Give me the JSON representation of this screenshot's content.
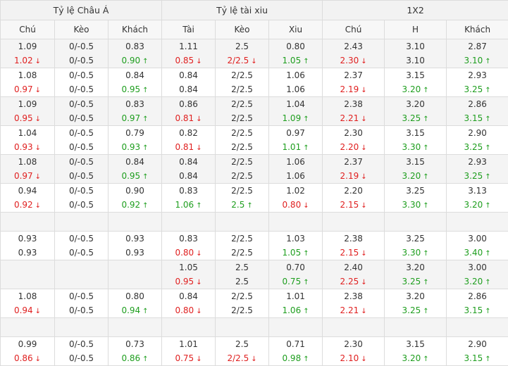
{
  "header": {
    "groups": [
      "Tỷ lệ Châu Á",
      "Tỷ lệ tài xiu",
      "1X2"
    ],
    "columns": [
      "Chú",
      "Kèo",
      "Khách",
      "Tài",
      "Kèo",
      "Xiu",
      "Chú",
      "H",
      "Khách"
    ]
  },
  "colors": {
    "up": "#1e9e1e",
    "down": "#e02020",
    "neutral": "#333333"
  },
  "rows": [
    {
      "type": "data",
      "cells": [
        [
          {
            "v": "1.09",
            "d": "n"
          },
          {
            "v": "1.02",
            "d": "down"
          }
        ],
        [
          {
            "v": "0/-0.5",
            "d": "n"
          },
          {
            "v": "0/-0.5",
            "d": "n"
          }
        ],
        [
          {
            "v": "0.83",
            "d": "n"
          },
          {
            "v": "0.90",
            "d": "up"
          }
        ],
        [
          {
            "v": "1.11",
            "d": "n"
          },
          {
            "v": "0.85",
            "d": "down"
          }
        ],
        [
          {
            "v": "2.5",
            "d": "n"
          },
          {
            "v": "2/2.5",
            "d": "down"
          }
        ],
        [
          {
            "v": "0.80",
            "d": "n"
          },
          {
            "v": "1.05",
            "d": "up"
          }
        ],
        [
          {
            "v": "2.43",
            "d": "n"
          },
          {
            "v": "2.30",
            "d": "down"
          }
        ],
        [
          {
            "v": "3.10",
            "d": "n"
          },
          {
            "v": "3.10",
            "d": "n"
          }
        ],
        [
          {
            "v": "2.87",
            "d": "n"
          },
          {
            "v": "3.10",
            "d": "up"
          }
        ]
      ]
    },
    {
      "type": "data",
      "cells": [
        [
          {
            "v": "1.08",
            "d": "n"
          },
          {
            "v": "0.97",
            "d": "down"
          }
        ],
        [
          {
            "v": "0/-0.5",
            "d": "n"
          },
          {
            "v": "0/-0.5",
            "d": "n"
          }
        ],
        [
          {
            "v": "0.84",
            "d": "n"
          },
          {
            "v": "0.95",
            "d": "up"
          }
        ],
        [
          {
            "v": "0.84",
            "d": "n"
          },
          {
            "v": "0.84",
            "d": "n"
          }
        ],
        [
          {
            "v": "2/2.5",
            "d": "n"
          },
          {
            "v": "2/2.5",
            "d": "n"
          }
        ],
        [
          {
            "v": "1.06",
            "d": "n"
          },
          {
            "v": "1.06",
            "d": "n"
          }
        ],
        [
          {
            "v": "2.37",
            "d": "n"
          },
          {
            "v": "2.19",
            "d": "down"
          }
        ],
        [
          {
            "v": "3.15",
            "d": "n"
          },
          {
            "v": "3.20",
            "d": "up"
          }
        ],
        [
          {
            "v": "2.93",
            "d": "n"
          },
          {
            "v": "3.25",
            "d": "up"
          }
        ]
      ]
    },
    {
      "type": "data",
      "cells": [
        [
          {
            "v": "1.09",
            "d": "n"
          },
          {
            "v": "0.95",
            "d": "down"
          }
        ],
        [
          {
            "v": "0/-0.5",
            "d": "n"
          },
          {
            "v": "0/-0.5",
            "d": "n"
          }
        ],
        [
          {
            "v": "0.83",
            "d": "n"
          },
          {
            "v": "0.97",
            "d": "up"
          }
        ],
        [
          {
            "v": "0.86",
            "d": "n"
          },
          {
            "v": "0.81",
            "d": "down"
          }
        ],
        [
          {
            "v": "2/2.5",
            "d": "n"
          },
          {
            "v": "2/2.5",
            "d": "n"
          }
        ],
        [
          {
            "v": "1.04",
            "d": "n"
          },
          {
            "v": "1.09",
            "d": "up"
          }
        ],
        [
          {
            "v": "2.38",
            "d": "n"
          },
          {
            "v": "2.21",
            "d": "down"
          }
        ],
        [
          {
            "v": "3.20",
            "d": "n"
          },
          {
            "v": "3.25",
            "d": "up"
          }
        ],
        [
          {
            "v": "2.86",
            "d": "n"
          },
          {
            "v": "3.15",
            "d": "up"
          }
        ]
      ]
    },
    {
      "type": "data",
      "cells": [
        [
          {
            "v": "1.04",
            "d": "n"
          },
          {
            "v": "0.93",
            "d": "down"
          }
        ],
        [
          {
            "v": "0/-0.5",
            "d": "n"
          },
          {
            "v": "0/-0.5",
            "d": "n"
          }
        ],
        [
          {
            "v": "0.79",
            "d": "n"
          },
          {
            "v": "0.93",
            "d": "up"
          }
        ],
        [
          {
            "v": "0.82",
            "d": "n"
          },
          {
            "v": "0.81",
            "d": "down"
          }
        ],
        [
          {
            "v": "2/2.5",
            "d": "n"
          },
          {
            "v": "2/2.5",
            "d": "n"
          }
        ],
        [
          {
            "v": "0.97",
            "d": "n"
          },
          {
            "v": "1.01",
            "d": "up"
          }
        ],
        [
          {
            "v": "2.30",
            "d": "n"
          },
          {
            "v": "2.20",
            "d": "down"
          }
        ],
        [
          {
            "v": "3.15",
            "d": "n"
          },
          {
            "v": "3.30",
            "d": "up"
          }
        ],
        [
          {
            "v": "2.90",
            "d": "n"
          },
          {
            "v": "3.25",
            "d": "up"
          }
        ]
      ]
    },
    {
      "type": "data",
      "cells": [
        [
          {
            "v": "1.08",
            "d": "n"
          },
          {
            "v": "0.97",
            "d": "down"
          }
        ],
        [
          {
            "v": "0/-0.5",
            "d": "n"
          },
          {
            "v": "0/-0.5",
            "d": "n"
          }
        ],
        [
          {
            "v": "0.84",
            "d": "n"
          },
          {
            "v": "0.95",
            "d": "up"
          }
        ],
        [
          {
            "v": "0.84",
            "d": "n"
          },
          {
            "v": "0.84",
            "d": "n"
          }
        ],
        [
          {
            "v": "2/2.5",
            "d": "n"
          },
          {
            "v": "2/2.5",
            "d": "n"
          }
        ],
        [
          {
            "v": "1.06",
            "d": "n"
          },
          {
            "v": "1.06",
            "d": "n"
          }
        ],
        [
          {
            "v": "2.37",
            "d": "n"
          },
          {
            "v": "2.19",
            "d": "down"
          }
        ],
        [
          {
            "v": "3.15",
            "d": "n"
          },
          {
            "v": "3.20",
            "d": "up"
          }
        ],
        [
          {
            "v": "2.93",
            "d": "n"
          },
          {
            "v": "3.25",
            "d": "up"
          }
        ]
      ]
    },
    {
      "type": "data",
      "cells": [
        [
          {
            "v": "0.94",
            "d": "n"
          },
          {
            "v": "0.92",
            "d": "down"
          }
        ],
        [
          {
            "v": "0/-0.5",
            "d": "n"
          },
          {
            "v": "0/-0.5",
            "d": "n"
          }
        ],
        [
          {
            "v": "0.90",
            "d": "n"
          },
          {
            "v": "0.92",
            "d": "up"
          }
        ],
        [
          {
            "v": "0.83",
            "d": "n"
          },
          {
            "v": "1.06",
            "d": "up"
          }
        ],
        [
          {
            "v": "2/2.5",
            "d": "n"
          },
          {
            "v": "2.5",
            "d": "up"
          }
        ],
        [
          {
            "v": "1.02",
            "d": "n"
          },
          {
            "v": "0.80",
            "d": "down"
          }
        ],
        [
          {
            "v": "2.20",
            "d": "n"
          },
          {
            "v": "2.15",
            "d": "down"
          }
        ],
        [
          {
            "v": "3.25",
            "d": "n"
          },
          {
            "v": "3.30",
            "d": "up"
          }
        ],
        [
          {
            "v": "3.13",
            "d": "n"
          },
          {
            "v": "3.20",
            "d": "up"
          }
        ]
      ]
    },
    {
      "type": "empty"
    },
    {
      "type": "data",
      "cells": [
        [
          {
            "v": "0.93",
            "d": "n"
          },
          {
            "v": "0.93",
            "d": "n"
          }
        ],
        [
          {
            "v": "0/-0.5",
            "d": "n"
          },
          {
            "v": "0/-0.5",
            "d": "n"
          }
        ],
        [
          {
            "v": "0.93",
            "d": "n"
          },
          {
            "v": "0.93",
            "d": "n"
          }
        ],
        [
          {
            "v": "0.83",
            "d": "n"
          },
          {
            "v": "0.80",
            "d": "down"
          }
        ],
        [
          {
            "v": "2/2.5",
            "d": "n"
          },
          {
            "v": "2/2.5",
            "d": "n"
          }
        ],
        [
          {
            "v": "1.03",
            "d": "n"
          },
          {
            "v": "1.05",
            "d": "up"
          }
        ],
        [
          {
            "v": "2.38",
            "d": "n"
          },
          {
            "v": "2.15",
            "d": "down"
          }
        ],
        [
          {
            "v": "3.25",
            "d": "n"
          },
          {
            "v": "3.30",
            "d": "up"
          }
        ],
        [
          {
            "v": "3.00",
            "d": "n"
          },
          {
            "v": "3.40",
            "d": "up"
          }
        ]
      ]
    },
    {
      "type": "data",
      "cells": [
        [],
        [],
        [],
        [
          {
            "v": "1.05",
            "d": "n"
          },
          {
            "v": "0.95",
            "d": "down"
          }
        ],
        [
          {
            "v": "2.5",
            "d": "n"
          },
          {
            "v": "2.5",
            "d": "n"
          }
        ],
        [
          {
            "v": "0.70",
            "d": "n"
          },
          {
            "v": "0.75",
            "d": "up"
          }
        ],
        [
          {
            "v": "2.40",
            "d": "n"
          },
          {
            "v": "2.25",
            "d": "down"
          }
        ],
        [
          {
            "v": "3.20",
            "d": "n"
          },
          {
            "v": "3.25",
            "d": "up"
          }
        ],
        [
          {
            "v": "3.00",
            "d": "n"
          },
          {
            "v": "3.20",
            "d": "up"
          }
        ]
      ]
    },
    {
      "type": "data",
      "cells": [
        [
          {
            "v": "1.08",
            "d": "n"
          },
          {
            "v": "0.94",
            "d": "down"
          }
        ],
        [
          {
            "v": "0/-0.5",
            "d": "n"
          },
          {
            "v": "0/-0.5",
            "d": "n"
          }
        ],
        [
          {
            "v": "0.80",
            "d": "n"
          },
          {
            "v": "0.94",
            "d": "up"
          }
        ],
        [
          {
            "v": "0.84",
            "d": "n"
          },
          {
            "v": "0.80",
            "d": "down"
          }
        ],
        [
          {
            "v": "2/2.5",
            "d": "n"
          },
          {
            "v": "2/2.5",
            "d": "n"
          }
        ],
        [
          {
            "v": "1.01",
            "d": "n"
          },
          {
            "v": "1.06",
            "d": "up"
          }
        ],
        [
          {
            "v": "2.38",
            "d": "n"
          },
          {
            "v": "2.21",
            "d": "down"
          }
        ],
        [
          {
            "v": "3.20",
            "d": "n"
          },
          {
            "v": "3.25",
            "d": "up"
          }
        ],
        [
          {
            "v": "2.86",
            "d": "n"
          },
          {
            "v": "3.15",
            "d": "up"
          }
        ]
      ]
    },
    {
      "type": "empty"
    },
    {
      "type": "data",
      "cells": [
        [
          {
            "v": "0.99",
            "d": "n"
          },
          {
            "v": "0.86",
            "d": "down"
          }
        ],
        [
          {
            "v": "0/-0.5",
            "d": "n"
          },
          {
            "v": "0/-0.5",
            "d": "n"
          }
        ],
        [
          {
            "v": "0.73",
            "d": "n"
          },
          {
            "v": "0.86",
            "d": "up"
          }
        ],
        [
          {
            "v": "1.01",
            "d": "n"
          },
          {
            "v": "0.75",
            "d": "down"
          }
        ],
        [
          {
            "v": "2.5",
            "d": "n"
          },
          {
            "v": "2/2.5",
            "d": "down"
          }
        ],
        [
          {
            "v": "0.71",
            "d": "n"
          },
          {
            "v": "0.98",
            "d": "up"
          }
        ],
        [
          {
            "v": "2.30",
            "d": "n"
          },
          {
            "v": "2.10",
            "d": "down"
          }
        ],
        [
          {
            "v": "3.15",
            "d": "n"
          },
          {
            "v": "3.20",
            "d": "up"
          }
        ],
        [
          {
            "v": "2.90",
            "d": "n"
          },
          {
            "v": "3.15",
            "d": "up"
          }
        ]
      ]
    }
  ]
}
